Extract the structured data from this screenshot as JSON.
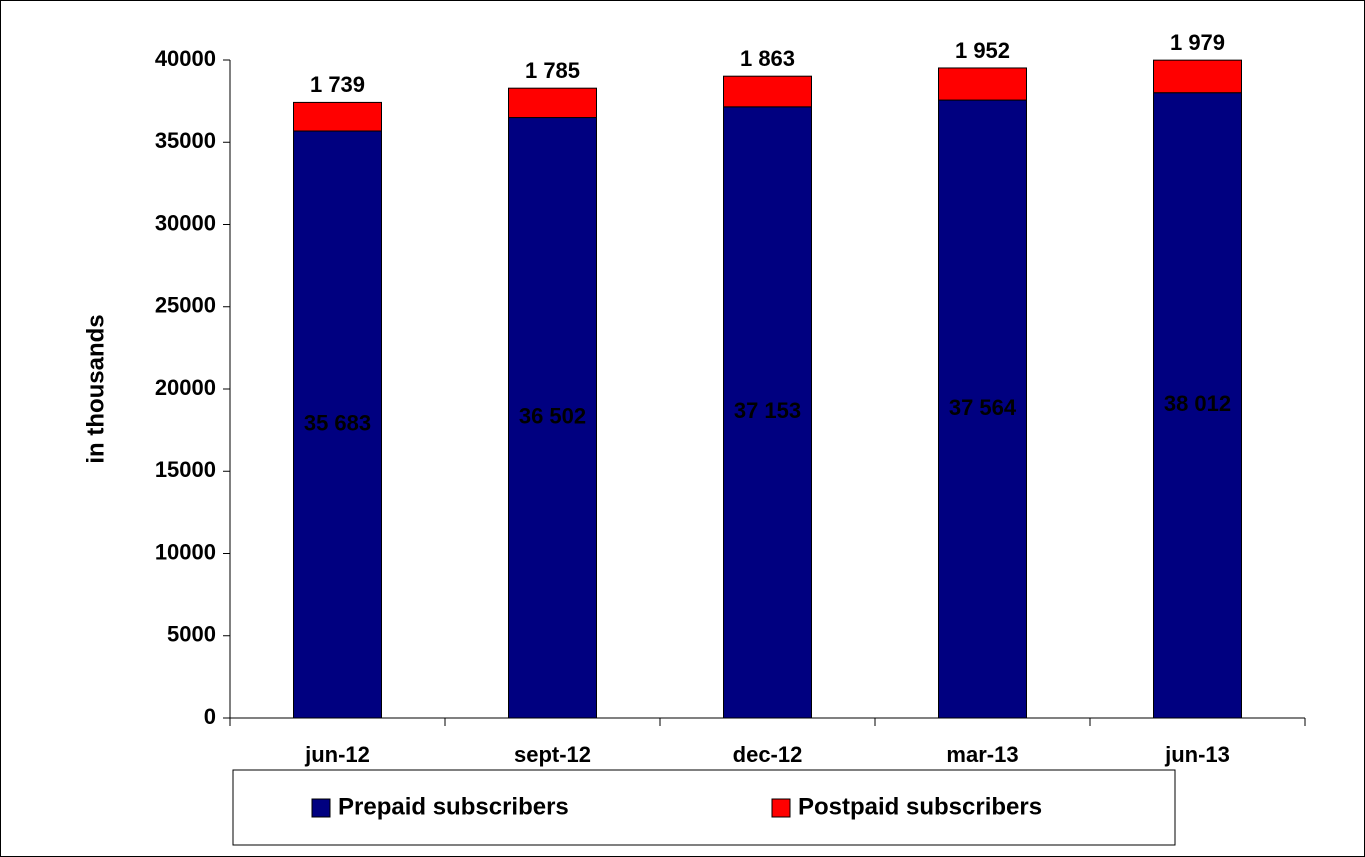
{
  "chart_data": {
    "type": "stacked_bar",
    "ylabel": "in thousands",
    "categories": [
      "jun-12",
      "sept-12",
      "dec-12",
      "mar-13",
      "jun-13"
    ],
    "series": [
      {
        "name": "Prepaid subscribers",
        "color": "#000080",
        "values": [
          35683,
          36502,
          37153,
          37564,
          38012
        ],
        "value_labels": [
          "35 683",
          "36 502",
          "37 153",
          "37 564",
          "38 012"
        ]
      },
      {
        "name": "Postpaid subscribers",
        "color": "#ff0000",
        "values": [
          1739,
          1785,
          1863,
          1952,
          1979
        ],
        "value_labels": [
          "1 739",
          "1 785",
          "1 863",
          "1 952",
          "1 979"
        ]
      }
    ],
    "ylim": [
      0,
      40000
    ],
    "yticks": [
      0,
      5000,
      10000,
      15000,
      20000,
      25000,
      30000,
      35000,
      40000
    ],
    "legend": "bottom"
  }
}
